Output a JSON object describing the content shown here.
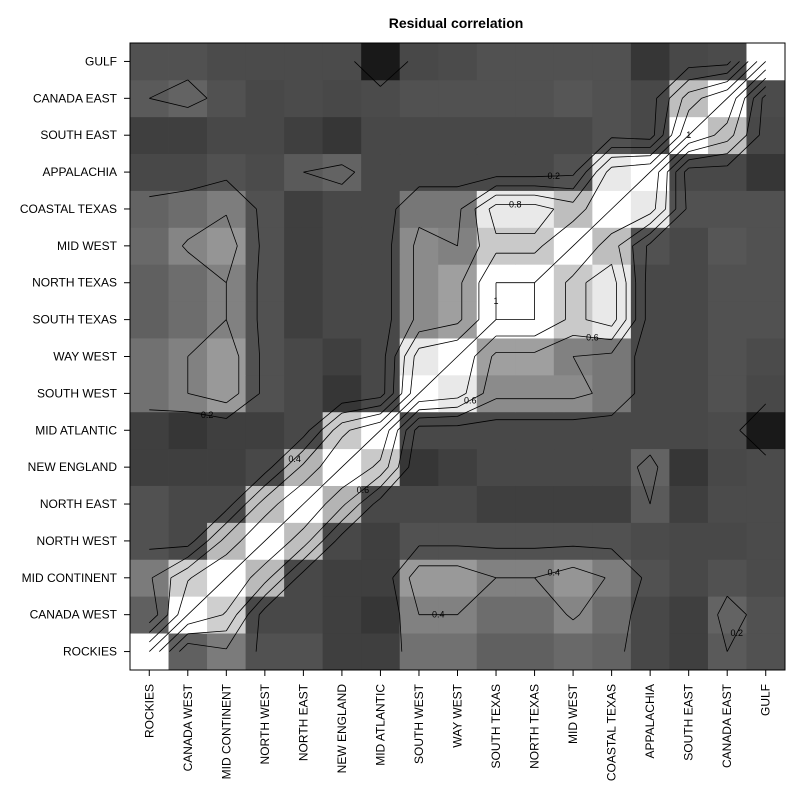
{
  "chart_data": {
    "type": "heatmap",
    "title": "Residual correlation",
    "xlabel": "",
    "ylabel": "",
    "colormap": "grayscale (white = high, black = low) with contour lines",
    "color_low": "#000000",
    "color_high": "#ffffff",
    "value_range": [
      -0.2,
      1
    ],
    "categories": [
      "ROCKIES",
      "CANADA WEST",
      "MID CONTINENT",
      "NORTH WEST",
      "NORTH EAST",
      "NEW ENGLAND",
      "MID ATLANTIC",
      "SOUTH WEST",
      "WAY WEST",
      "SOUTH TEXAS",
      "NORTH TEXAS",
      "MID WEST",
      "COASTAL TEXAS",
      "APPALACHIA",
      "SOUTH EAST",
      "CANADA EAST",
      "GULF"
    ],
    "matrix": [
      [
        1.0,
        0.23,
        0.37,
        0.15,
        0.15,
        0.05,
        0.05,
        0.32,
        0.32,
        0.23,
        0.23,
        0.28,
        0.25,
        0.1,
        0.05,
        0.2,
        0.15
      ],
      [
        0.23,
        1.0,
        0.78,
        0.1,
        0.1,
        0.05,
        0.0,
        0.4,
        0.4,
        0.3,
        0.3,
        0.42,
        0.3,
        0.1,
        0.05,
        0.25,
        0.15
      ],
      [
        0.37,
        0.78,
        1.0,
        0.68,
        0.1,
        0.05,
        0.05,
        0.52,
        0.52,
        0.4,
        0.4,
        0.5,
        0.38,
        0.15,
        0.1,
        0.15,
        0.12
      ],
      [
        0.15,
        0.1,
        0.68,
        1.0,
        0.7,
        0.1,
        0.05,
        0.15,
        0.15,
        0.15,
        0.15,
        0.15,
        0.15,
        0.12,
        0.1,
        0.1,
        0.12
      ],
      [
        0.15,
        0.1,
        0.1,
        0.7,
        1.0,
        0.65,
        0.1,
        0.1,
        0.1,
        0.05,
        0.05,
        0.05,
        0.05,
        0.2,
        0.05,
        0.12,
        0.12
      ],
      [
        0.05,
        0.05,
        0.05,
        0.1,
        0.65,
        1.0,
        0.75,
        0.0,
        0.05,
        0.1,
        0.1,
        0.1,
        0.1,
        0.25,
        0.0,
        0.1,
        0.12
      ],
      [
        0.05,
        0.0,
        0.05,
        0.05,
        0.1,
        0.75,
        1.0,
        0.1,
        0.1,
        0.1,
        0.1,
        0.1,
        0.1,
        0.1,
        0.1,
        0.12,
        -0.25
      ],
      [
        0.32,
        0.4,
        0.52,
        0.15,
        0.1,
        0.0,
        0.1,
        1.0,
        0.9,
        0.45,
        0.45,
        0.45,
        0.35,
        0.1,
        0.1,
        0.15,
        0.1
      ],
      [
        0.32,
        0.4,
        0.52,
        0.15,
        0.1,
        0.05,
        0.1,
        0.9,
        1.0,
        0.55,
        0.55,
        0.4,
        0.35,
        0.1,
        0.1,
        0.15,
        0.12
      ],
      [
        0.23,
        0.3,
        0.4,
        0.15,
        0.05,
        0.1,
        0.1,
        0.45,
        0.55,
        1.0,
        1.0,
        0.75,
        0.9,
        0.1,
        0.1,
        0.15,
        0.15
      ],
      [
        0.23,
        0.3,
        0.4,
        0.15,
        0.05,
        0.1,
        0.1,
        0.45,
        0.55,
        1.0,
        1.0,
        0.75,
        0.9,
        0.1,
        0.1,
        0.15,
        0.15
      ],
      [
        0.28,
        0.42,
        0.5,
        0.15,
        0.05,
        0.1,
        0.1,
        0.45,
        0.4,
        0.75,
        0.75,
        1.0,
        0.7,
        0.15,
        0.1,
        0.18,
        0.15
      ],
      [
        0.25,
        0.3,
        0.38,
        0.15,
        0.05,
        0.1,
        0.1,
        0.35,
        0.35,
        0.9,
        0.9,
        0.7,
        1.0,
        0.9,
        0.15,
        0.15,
        0.15
      ],
      [
        0.1,
        0.1,
        0.15,
        0.12,
        0.2,
        0.25,
        0.1,
        0.1,
        0.1,
        0.1,
        0.1,
        0.15,
        0.9,
        1.0,
        0.1,
        0.1,
        0.0
      ],
      [
        0.05,
        0.05,
        0.1,
        0.1,
        0.05,
        0.0,
        0.1,
        0.1,
        0.1,
        0.1,
        0.1,
        0.1,
        0.15,
        0.1,
        1.0,
        0.7,
        0.1
      ],
      [
        0.2,
        0.25,
        0.15,
        0.1,
        0.12,
        0.1,
        0.12,
        0.15,
        0.15,
        0.15,
        0.15,
        0.18,
        0.15,
        0.1,
        0.7,
        1.0,
        0.12
      ],
      [
        0.15,
        0.15,
        0.12,
        0.12,
        0.12,
        0.12,
        -0.25,
        0.1,
        0.12,
        0.15,
        0.15,
        0.15,
        0.15,
        0.0,
        0.1,
        0.12,
        1.0
      ]
    ],
    "contour_labels": [
      "0",
      "0.2",
      "0.4",
      "0.6",
      "0.8",
      "1"
    ]
  }
}
